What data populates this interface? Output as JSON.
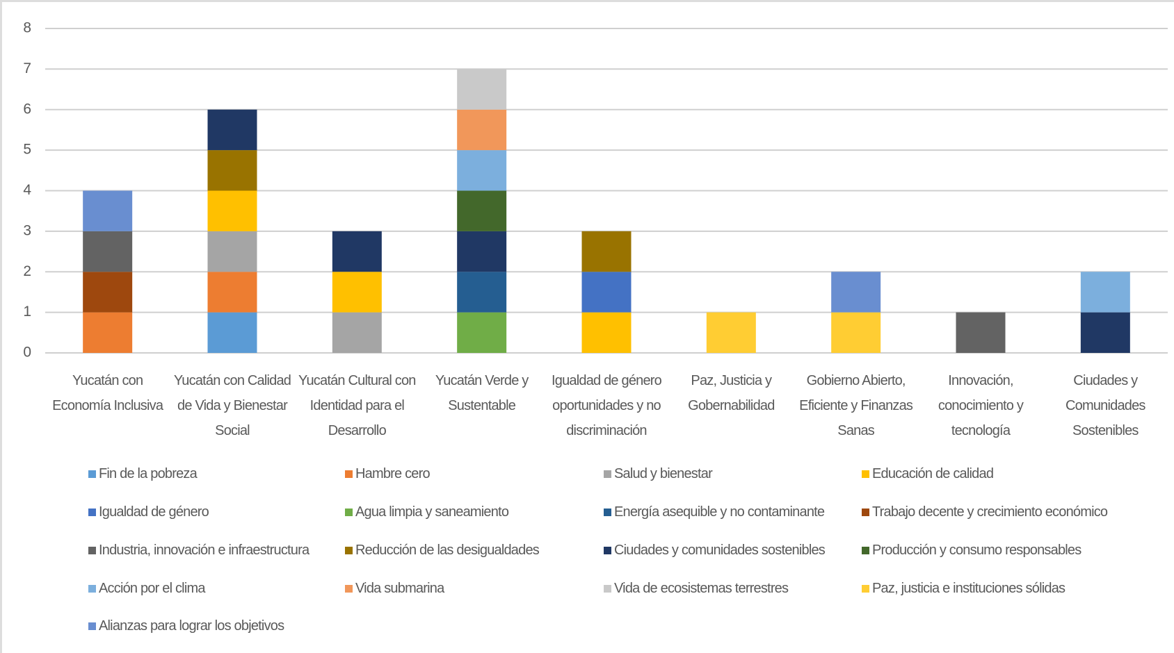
{
  "chart_data": {
    "type": "stacked_bar",
    "categories": [
      "Yucatán con Economía Inclusiva",
      "Yucatán con Calidad de Vida y Bienestar Social",
      "Yucatán Cultural con Identidad para el Desarrollo",
      "Yucatán Verde y Sustentable",
      "Igualdad de género oportunidades y no discriminación",
      "Paz, Justicia y Gobernabilidad",
      "Gobierno Abierto, Eficiente y Finanzas Sanas",
      "Innovación, conocimiento y tecnología",
      "Ciudades y Comunidades Sostenibles"
    ],
    "series": [
      {
        "name": "Fin de la pobreza",
        "color": "#5b9bd5",
        "values": [
          0,
          1,
          0,
          0,
          0,
          0,
          0,
          0,
          0
        ]
      },
      {
        "name": "Hambre cero",
        "color": "#ed7d31",
        "values": [
          1,
          1,
          0,
          0,
          0,
          0,
          0,
          0,
          0
        ]
      },
      {
        "name": "Salud y bienestar",
        "color": "#a5a5a5",
        "values": [
          0,
          1,
          1,
          0,
          0,
          0,
          0,
          0,
          0
        ]
      },
      {
        "name": "Educación de calidad",
        "color": "#ffc000",
        "values": [
          0,
          1,
          1,
          0,
          1,
          0,
          0,
          0,
          0
        ]
      },
      {
        "name": "Igualdad de género",
        "color": "#4472c4",
        "values": [
          0,
          0,
          0,
          0,
          1,
          0,
          0,
          0,
          0
        ]
      },
      {
        "name": "Agua limpia y saneamiento",
        "color": "#70ad47",
        "values": [
          0,
          0,
          0,
          1,
          0,
          0,
          0,
          0,
          0
        ]
      },
      {
        "name": "Energía asequible y no contaminante",
        "color": "#255e91",
        "values": [
          0,
          0,
          0,
          1,
          0,
          0,
          0,
          0,
          0
        ]
      },
      {
        "name": "Trabajo decente y crecimiento económico",
        "color": "#9e480e",
        "values": [
          1,
          0,
          0,
          0,
          0,
          0,
          0,
          0,
          0
        ]
      },
      {
        "name": "Industria, innovación e infraestructura",
        "color": "#636363",
        "values": [
          1,
          0,
          0,
          0,
          0,
          0,
          0,
          1,
          0
        ]
      },
      {
        "name": "Reducción de las desigualdades",
        "color": "#997300",
        "values": [
          0,
          1,
          0,
          0,
          1,
          0,
          0,
          0,
          0
        ]
      },
      {
        "name": "Ciudades y comunidades sostenibles",
        "color": "#203864",
        "values": [
          0,
          1,
          1,
          1,
          0,
          0,
          0,
          0,
          1
        ]
      },
      {
        "name": "Producción y consumo responsables",
        "color": "#43682b",
        "values": [
          0,
          0,
          0,
          1,
          0,
          0,
          0,
          0,
          0
        ]
      },
      {
        "name": "Acción por el clima",
        "color": "#7cafdd",
        "values": [
          0,
          0,
          0,
          1,
          0,
          0,
          0,
          0,
          1
        ]
      },
      {
        "name": "Vida submarina",
        "color": "#f1975a",
        "values": [
          0,
          0,
          0,
          1,
          0,
          0,
          0,
          0,
          0
        ]
      },
      {
        "name": "Vida de ecosistemas terrestres",
        "color": "#c9c9c9",
        "values": [
          0,
          0,
          0,
          1,
          0,
          0,
          0,
          0,
          0
        ]
      },
      {
        "name": "Paz, justicia e instituciones sólidas",
        "color": "#ffcd33",
        "values": [
          0,
          0,
          0,
          0,
          0,
          1,
          1,
          0,
          0
        ]
      },
      {
        "name": "Alianzas para lograr los objetivos",
        "color": "#698ed0",
        "values": [
          1,
          0,
          0,
          0,
          0,
          0,
          1,
          0,
          0
        ]
      }
    ],
    "ylim": [
      0,
      8
    ],
    "yticks": [
      0,
      1,
      2,
      3,
      4,
      5,
      6,
      7,
      8
    ],
    "grid": true
  }
}
